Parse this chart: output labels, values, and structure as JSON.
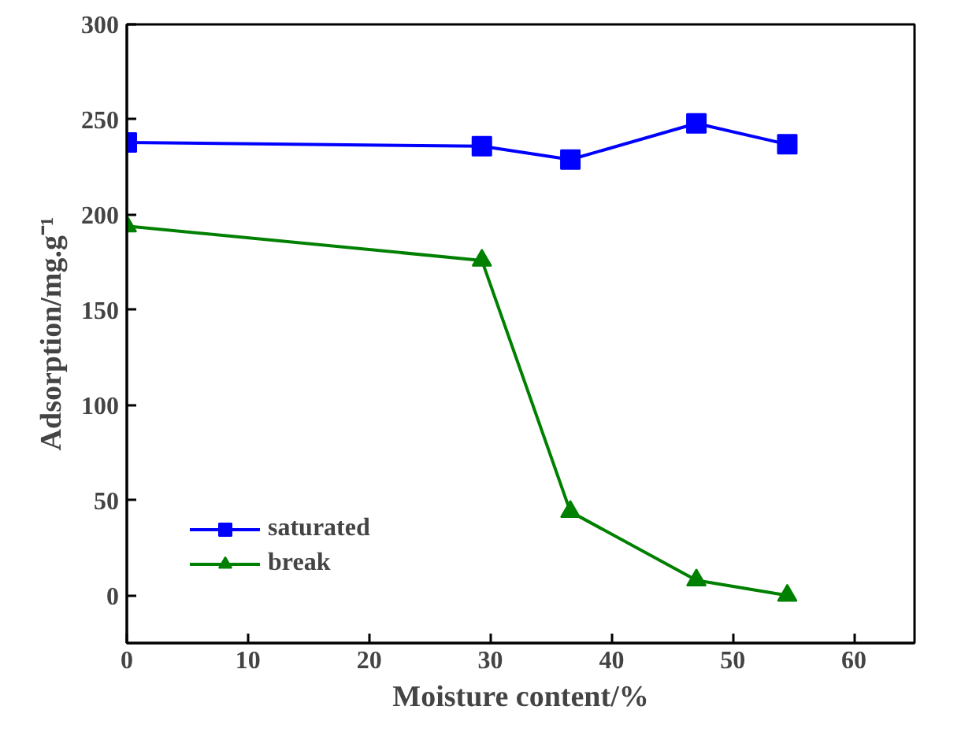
{
  "chart_data": {
    "type": "line",
    "xlabel": "Moisture content/%",
    "ylabel": "Adsorption/mg.g⁻¹",
    "xlim": [
      0,
      65
    ],
    "ylim": [
      -25,
      300
    ],
    "xticks": [
      0,
      10,
      20,
      30,
      40,
      50,
      60
    ],
    "yticks": [
      0,
      50,
      100,
      150,
      200,
      250,
      300
    ],
    "grid": false,
    "legend": "bottom left",
    "line_style": "solid",
    "series": [
      {
        "name": "saturated",
        "color": "#0000ff",
        "marker": "square",
        "x": [
          0,
          29.3,
          36.6,
          47,
          54.5
        ],
        "values": [
          238,
          236,
          229,
          248,
          237
        ]
      },
      {
        "name": "break",
        "color": "#008000",
        "marker": "triangle",
        "x": [
          0,
          29.3,
          36.6,
          47,
          54.5
        ],
        "values": [
          194,
          176,
          44,
          8,
          0
        ]
      }
    ]
  }
}
